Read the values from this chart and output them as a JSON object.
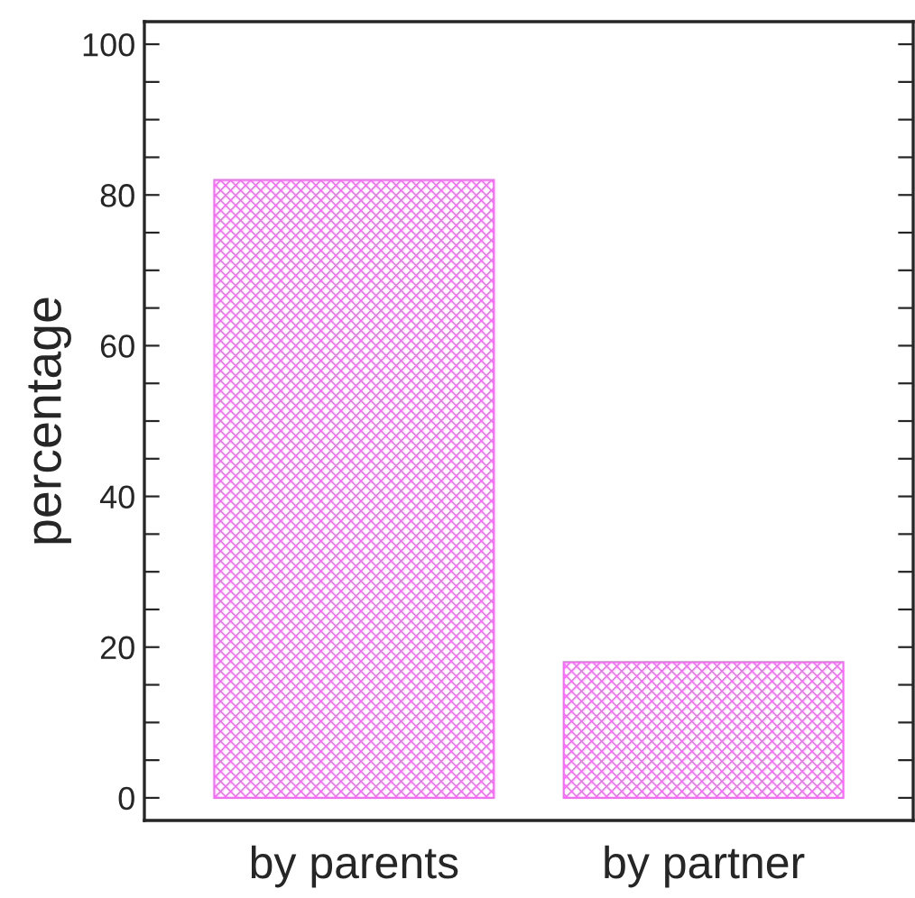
{
  "chart_data": {
    "type": "bar",
    "ylabel": "percentage",
    "categories": [
      "by parents",
      "by partner"
    ],
    "values": [
      82,
      18
    ],
    "color": "#ff66ff",
    "ylim": [
      -3,
      103
    ],
    "yticks": [
      0,
      {
        "value": 5,
        "label": null
      },
      {
        "value": 10,
        "label": null
      },
      {
        "value": 15,
        "label": null
      },
      20,
      {
        "value": 25,
        "label": null
      },
      {
        "value": 30,
        "label": null
      },
      {
        "value": 35,
        "label": null
      },
      40,
      {
        "value": 45,
        "label": null
      },
      {
        "value": 50,
        "label": null
      },
      {
        "value": 55,
        "label": null
      },
      60,
      {
        "value": 65,
        "label": null
      },
      {
        "value": 70,
        "label": null
      },
      {
        "value": 75,
        "label": null
      },
      80,
      {
        "value": 85,
        "label": null
      },
      {
        "value": 90,
        "label": null
      },
      {
        "value": 95,
        "label": null
      },
      100
    ],
    "grid": false
  }
}
